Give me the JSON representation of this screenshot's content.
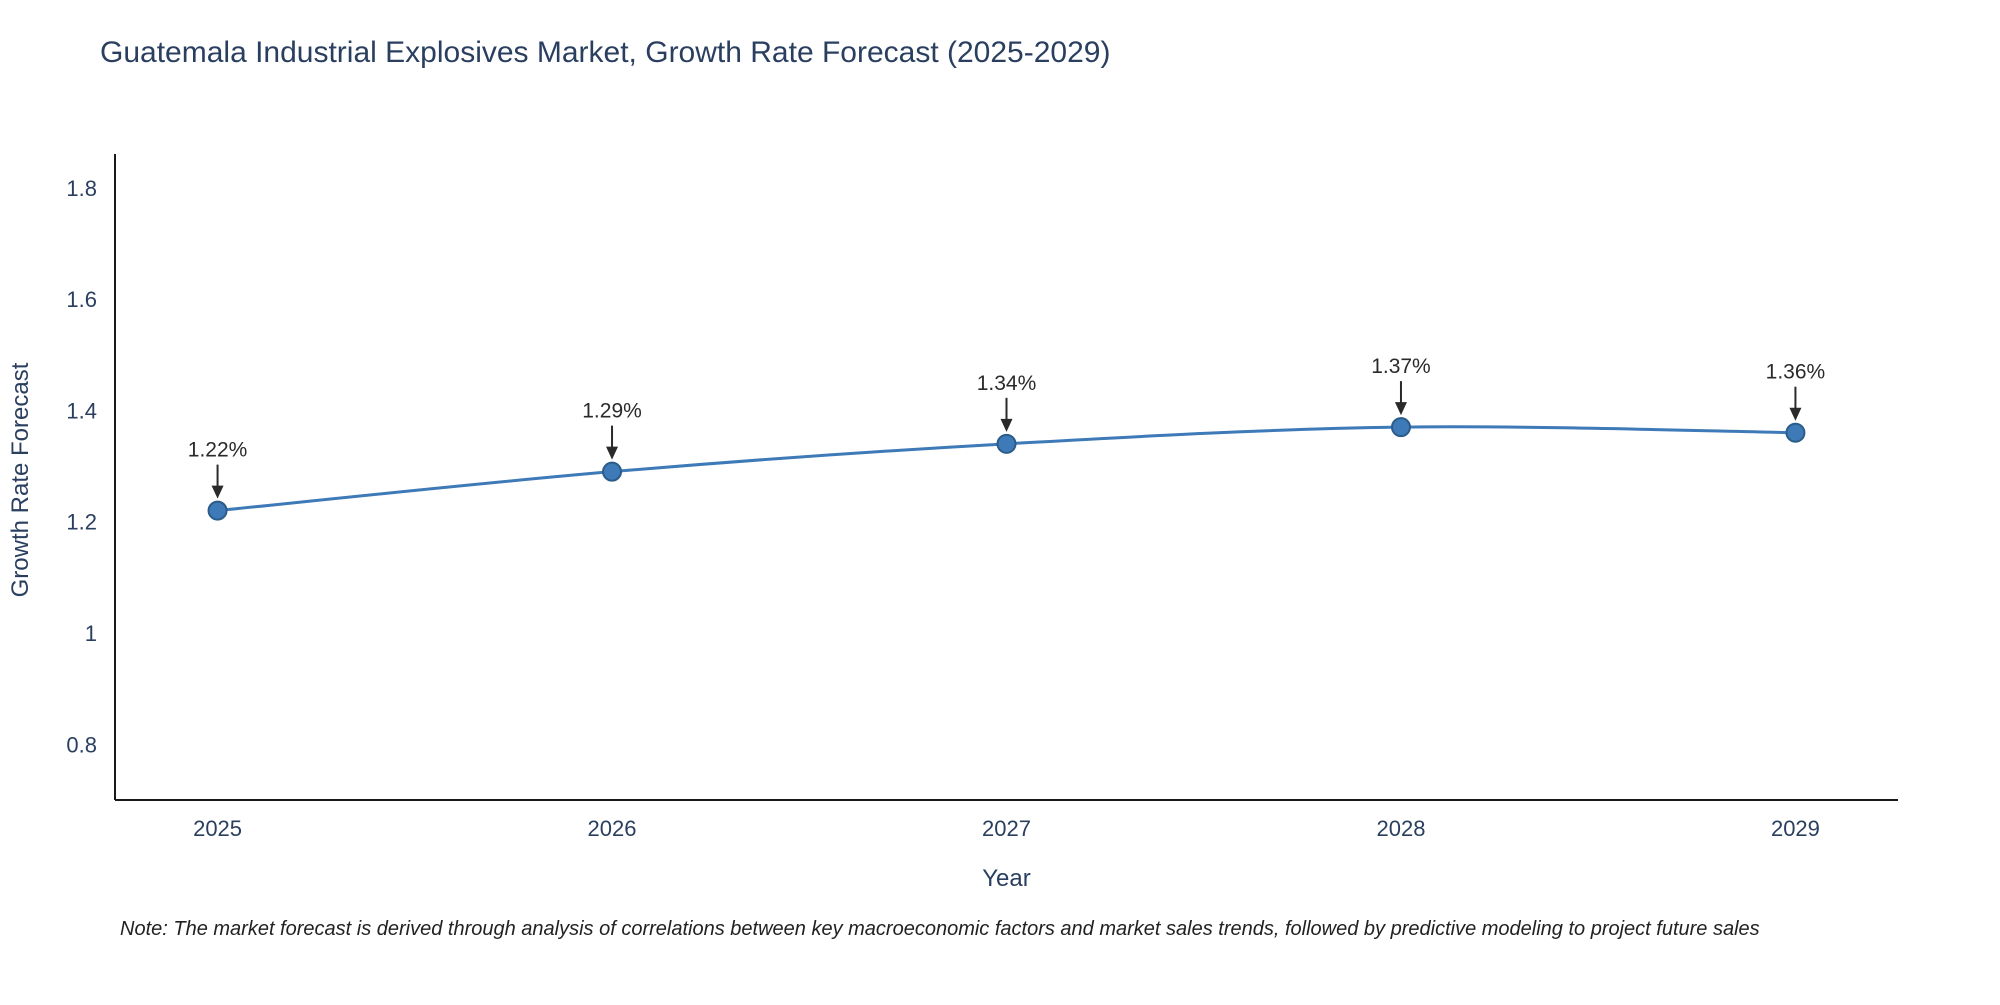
{
  "title": "Guatemala Industrial Explosives Market, Growth Rate Forecast (2025-2029)",
  "note": "Note: The market forecast is derived through analysis of correlations between key macroeconomic factors and market sales trends, followed by predictive modeling to project future sales",
  "chart_data": {
    "type": "line",
    "title": "Guatemala Industrial Explosives Market, Growth Rate Forecast (2025-2029)",
    "xlabel": "Year",
    "ylabel": "Growth Rate Forecast",
    "x": [
      2025,
      2026,
      2027,
      2028,
      2029
    ],
    "x_labels": [
      "2025",
      "2026",
      "2027",
      "2028",
      "2029"
    ],
    "series": [
      {
        "name": "Growth Rate Forecast",
        "values": [
          1.22,
          1.29,
          1.34,
          1.37,
          1.36
        ]
      }
    ],
    "point_labels": [
      "1.22%",
      "1.29%",
      "1.34%",
      "1.37%",
      "1.36%"
    ],
    "ylim": [
      0.7,
      1.85
    ],
    "yticks": [
      {
        "value": 0.8,
        "label": "0.8"
      },
      {
        "value": 1.0,
        "label": "1"
      },
      {
        "value": 1.2,
        "label": "1.2"
      },
      {
        "value": 1.4,
        "label": "1.4"
      },
      {
        "value": 1.6,
        "label": "1.6"
      },
      {
        "value": 1.8,
        "label": "1.8"
      }
    ],
    "grid": false,
    "legend": "none",
    "colors": {
      "line": "#3d7ab7",
      "marker": "#3d7ab7",
      "marker_edge": "#2b5c8a",
      "text": "#2a3f5f",
      "axis": "#1a1a1a",
      "annotation": "#2a2a2a",
      "arrow": "#2a2a2a",
      "background": "#ffffff"
    }
  }
}
